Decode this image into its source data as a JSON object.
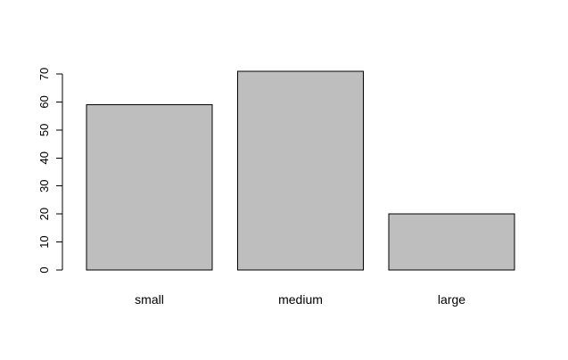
{
  "chart_data": {
    "type": "bar",
    "categories": [
      "small",
      "medium",
      "large"
    ],
    "values": [
      59,
      71,
      20
    ],
    "title": "",
    "xlabel": "",
    "ylabel": "",
    "ylim": [
      0,
      70
    ],
    "yticks": [
      0,
      10,
      20,
      30,
      40,
      50,
      60,
      70
    ],
    "grid": false,
    "legend": "none",
    "colors": {
      "bar_fill": "#bebebe",
      "bar_stroke": "#000000",
      "axis": "#000000",
      "background": "#ffffff"
    }
  }
}
